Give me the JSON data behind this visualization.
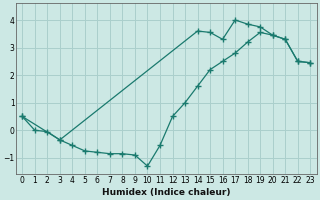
{
  "xlabel": "Humidex (Indice chaleur)",
  "ylabel": "",
  "background_color": "#cce8e4",
  "grid_color": "#aacfcc",
  "line_color": "#1a7a6e",
  "xlim": [
    -0.5,
    23.5
  ],
  "ylim": [
    -1.6,
    4.6
  ],
  "xticks": [
    0,
    1,
    2,
    3,
    4,
    5,
    6,
    7,
    8,
    9,
    10,
    11,
    12,
    13,
    14,
    15,
    16,
    17,
    18,
    19,
    20,
    21,
    22,
    23
  ],
  "yticks": [
    -1,
    0,
    1,
    2,
    3,
    4
  ],
  "line1_x": [
    0,
    1,
    2,
    3,
    4,
    5,
    6,
    7,
    8,
    9,
    10,
    11,
    12,
    13,
    14,
    15,
    16,
    17,
    18,
    19,
    20,
    21,
    22,
    23
  ],
  "line1_y": [
    0.5,
    0.0,
    -0.05,
    -0.35,
    -0.55,
    -0.75,
    -0.8,
    -0.85,
    -0.85,
    -0.9,
    -1.3,
    -0.55,
    0.5,
    1.0,
    1.6,
    2.2,
    2.5,
    2.8,
    3.2,
    3.55,
    3.45,
    3.3,
    2.5,
    2.45
  ],
  "line2_x": [
    0,
    3,
    14,
    15,
    16,
    17,
    18,
    19,
    20,
    21,
    22,
    23
  ],
  "line2_y": [
    0.5,
    -0.35,
    3.6,
    3.55,
    3.3,
    4.0,
    3.85,
    3.75,
    3.45,
    3.3,
    2.5,
    2.45
  ]
}
